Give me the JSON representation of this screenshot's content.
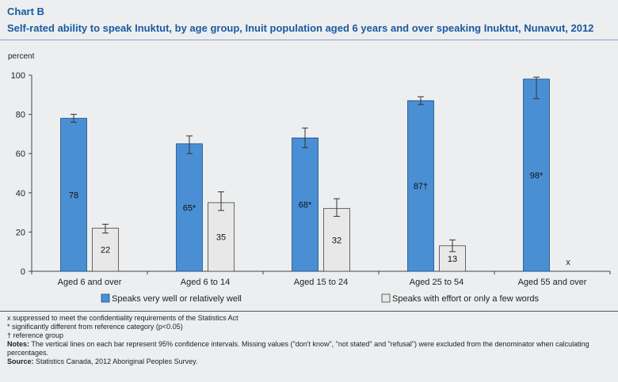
{
  "chart_id": "Chart B",
  "chart_title": "Self-rated ability to speak Inuktut, by age group, Inuit population aged 6 years and over speaking Inuktut, Nunavut, 2012",
  "colors": {
    "series1": "#4a8fd4",
    "series1_stroke": "#1f4f85",
    "series2": "#e8e8e8",
    "series2_stroke": "#444444",
    "title": "#1a5aa0"
  },
  "chart_data": {
    "type": "bar",
    "title": "",
    "ylabel": "percent",
    "xlabel": "",
    "ylim": [
      0,
      100
    ],
    "yticks": [
      0,
      20,
      40,
      60,
      80,
      100
    ],
    "grid": false,
    "legend_position": "bottom",
    "categories": [
      "Aged 6 and over",
      "Aged 6 to 14",
      "Aged 15 to 24",
      "Aged 25 to 54",
      "Aged 55 and over"
    ],
    "series": [
      {
        "name": "Speaks very well or relatively well",
        "values": [
          78,
          65,
          68,
          87,
          98
        ],
        "labels": [
          "78",
          "65*",
          "68*",
          "87†",
          "98*"
        ],
        "ci_low": [
          76,
          60,
          63,
          85,
          88
        ],
        "ci_high": [
          80,
          69,
          73,
          89,
          99
        ]
      },
      {
        "name": "Speaks with effort or only a few words",
        "values": [
          22,
          35,
          32,
          13,
          null
        ],
        "labels": [
          "22",
          "35",
          "32",
          "13",
          "x"
        ],
        "ci_low": [
          19.5,
          31,
          28,
          10,
          null
        ],
        "ci_high": [
          24,
          40.5,
          37,
          16,
          null
        ]
      }
    ]
  },
  "footnotes": {
    "line1": "x suppressed to meet the confidentiality requirements of the Statistics Act",
    "line2": "* significantly different from reference category (p<0.05)",
    "line3": "† reference group",
    "notes_label": "Notes:",
    "notes_text": " The vertical lines on each bar represent 95% confidence intervals. Missing values (\"don't know\", \"not stated\" and \"refusal\") were excluded from the denominator when calculating percentages.",
    "source_label": "Source:",
    "source_text": " Statistics Canada, 2012 Aboriginal Peoples Survey."
  }
}
